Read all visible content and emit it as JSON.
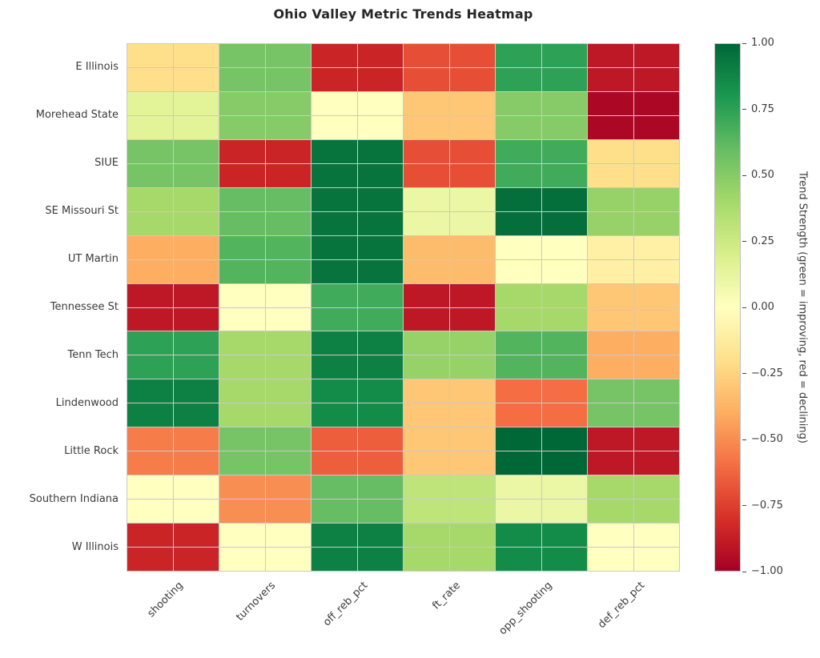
{
  "title": "Ohio Valley Metric Trends Heatmap",
  "chart_data": {
    "type": "heatmap",
    "title": "Ohio Valley Metric Trends Heatmap",
    "rows": [
      "E Illinois",
      "Morehead State",
      "SIUE",
      "SE Missouri St",
      "UT Martin",
      "Tennessee St",
      "Tenn Tech",
      "Lindenwood",
      "Little Rock",
      "Southern Indiana",
      "W Illinois"
    ],
    "columns": [
      "shooting",
      "turnovers",
      "off_reb_pct",
      "ft_rate",
      "opp_shooting",
      "def_reb_pct"
    ],
    "values": [
      [
        -0.2,
        0.55,
        -0.85,
        -0.7,
        0.75,
        -0.9
      ],
      [
        0.15,
        0.5,
        0.0,
        -0.3,
        0.5,
        -0.97
      ],
      [
        0.55,
        -0.85,
        0.95,
        -0.7,
        0.7,
        -0.2
      ],
      [
        0.4,
        0.6,
        0.95,
        0.1,
        0.97,
        0.45
      ],
      [
        -0.4,
        0.65,
        0.95,
        -0.35,
        0.0,
        -0.1
      ],
      [
        -0.9,
        0.0,
        0.7,
        -0.9,
        0.4,
        -0.3
      ],
      [
        0.75,
        0.4,
        0.9,
        0.45,
        0.65,
        -0.4
      ],
      [
        0.9,
        0.4,
        0.85,
        -0.3,
        -0.6,
        0.55
      ],
      [
        -0.55,
        0.55,
        -0.65,
        -0.3,
        1.0,
        -0.9
      ],
      [
        0.0,
        -0.5,
        0.6,
        0.3,
        0.1,
        0.4
      ],
      [
        -0.85,
        0.0,
        0.9,
        0.4,
        0.85,
        0.0
      ]
    ],
    "vmin": -1.0,
    "vmax": 1.0,
    "cell_subdivision": 2,
    "grid_on": true,
    "grid_line_color": "#cacaca",
    "x_tick_rotation_deg": 45,
    "colormap": {
      "name": "RdYlGn",
      "anchors": [
        [
          0.0,
          "#a50026"
        ],
        [
          0.1,
          "#d73027"
        ],
        [
          0.2,
          "#f46d43"
        ],
        [
          0.3,
          "#fdae61"
        ],
        [
          0.4,
          "#fee08b"
        ],
        [
          0.5,
          "#ffffbf"
        ],
        [
          0.6,
          "#d9ef8b"
        ],
        [
          0.7,
          "#a6d96a"
        ],
        [
          0.8,
          "#66bd63"
        ],
        [
          0.9,
          "#1a9850"
        ],
        [
          1.0,
          "#006837"
        ]
      ]
    },
    "colorbar": {
      "label": "Trend Strength (green = improving, red = declining)",
      "position": "right",
      "ticks": [
        "1.00",
        "0.75",
        "0.50",
        "0.25",
        "0.00",
        "−0.25",
        "−0.50",
        "−0.75",
        "−1.00"
      ]
    }
  }
}
